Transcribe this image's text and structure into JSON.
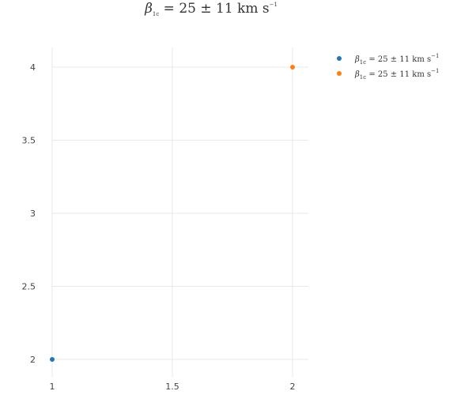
{
  "chart_data": {
    "type": "scatter",
    "title_parts": {
      "beta": "β",
      "sub": "1c",
      "equals": " = 25 ± 11 km s",
      "sup": "−1"
    },
    "x_ticks": [
      "1",
      "1.5",
      "2"
    ],
    "y_ticks": [
      "2",
      "2.5",
      "3",
      "3.5",
      "4"
    ],
    "x_range": [
      1,
      2
    ],
    "y_range": [
      2,
      4
    ],
    "grid": true,
    "legend_placement": "top-right",
    "series": [
      {
        "legend_parts": {
          "beta": "β",
          "sub": "1c",
          "equals": " = 25 ± 11 km s",
          "sup": "−1"
        },
        "color": "#1f77b4",
        "x": [
          1
        ],
        "y": [
          2
        ]
      },
      {
        "legend_parts": {
          "beta": "β",
          "sub": "1c",
          "equals": " = 25 ± 11 km s",
          "sup": "−1"
        },
        "color": "#ff7f0e",
        "x": [
          2
        ],
        "y": [
          4
        ]
      }
    ]
  }
}
